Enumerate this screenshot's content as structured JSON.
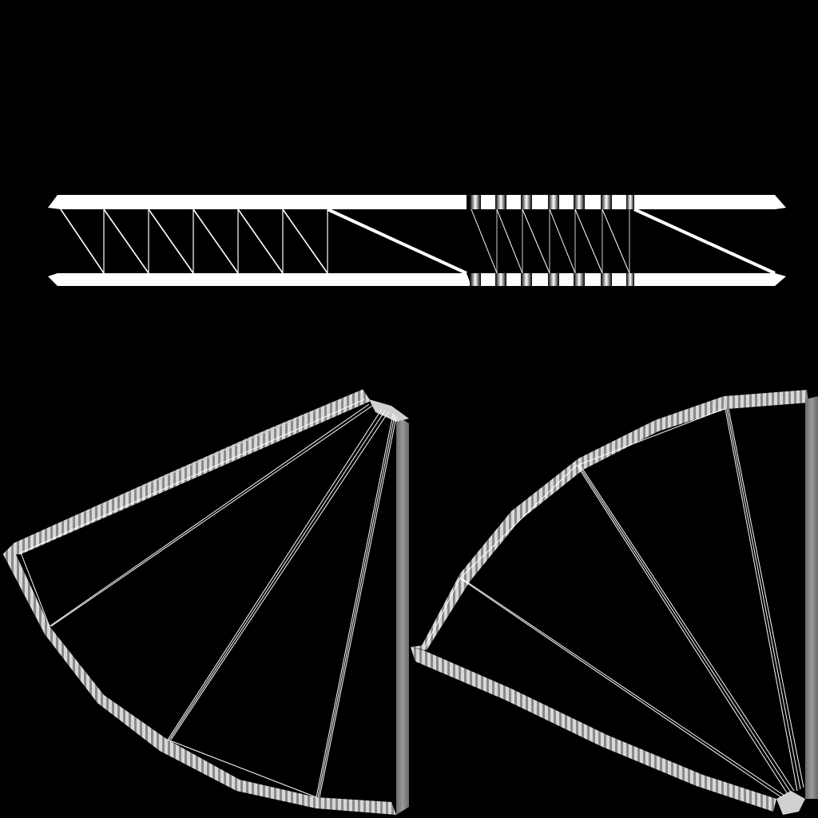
{
  "palette": {
    "background": "#000000",
    "edge": "#ffffff",
    "edge_soft": "#e6e6e6",
    "edge_grey": "#8c8c8c",
    "edge_dark": "#5a5a5a"
  },
  "texture": {
    "kind": "uv-wireframe-layout",
    "islands": [
      "strip",
      "fan-left",
      "fan-right"
    ]
  }
}
